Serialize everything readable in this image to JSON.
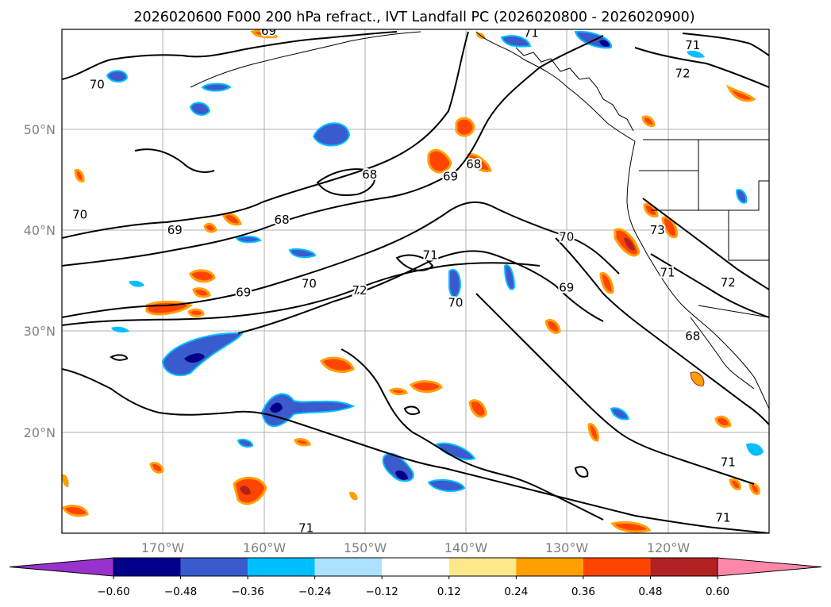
{
  "map": {
    "title": "2026020600 F000 200 hPa refract., IVT Landfall PC (2026020800 - 2026020900)",
    "latitude_labels": [
      "50°N",
      "40°N",
      "30°N",
      "20°N"
    ],
    "longitude_labels": [
      "170°W",
      "160°W",
      "150°W",
      "140°W",
      "130°W",
      "120°W"
    ],
    "contour_labels": [
      {
        "text": "69",
        "lon": -159.5,
        "lat": 59.7
      },
      {
        "text": "71",
        "lon": -133.5,
        "lat": 59.5
      },
      {
        "text": "71",
        "lon": -117.5,
        "lat": 58.3
      },
      {
        "text": "72",
        "lon": -118.5,
        "lat": 55.5
      },
      {
        "text": "70",
        "lon": -176.5,
        "lat": 54.4
      },
      {
        "text": "68",
        "lon": -149.5,
        "lat": 45.5
      },
      {
        "text": "69",
        "lon": -141.5,
        "lat": 45.3
      },
      {
        "text": "68",
        "lon": -139.2,
        "lat": 46.5
      },
      {
        "text": "70",
        "lon": -178.2,
        "lat": 41.5
      },
      {
        "text": "68",
        "lon": -158.2,
        "lat": 41.0
      },
      {
        "text": "69",
        "lon": -168.8,
        "lat": 40.0
      },
      {
        "text": "73",
        "lon": -121.0,
        "lat": 40.0
      },
      {
        "text": "70",
        "lon": -130.0,
        "lat": 39.3
      },
      {
        "text": "71",
        "lon": -143.5,
        "lat": 37.5
      },
      {
        "text": "71",
        "lon": -120.0,
        "lat": 35.8
      },
      {
        "text": "72",
        "lon": -114.0,
        "lat": 34.8
      },
      {
        "text": "72",
        "lon": -150.5,
        "lat": 34.0
      },
      {
        "text": "70",
        "lon": -155.5,
        "lat": 34.7
      },
      {
        "text": "69",
        "lon": -162.0,
        "lat": 33.8
      },
      {
        "text": "69",
        "lon": -130.0,
        "lat": 34.3
      },
      {
        "text": "70",
        "lon": -141.0,
        "lat": 32.8
      },
      {
        "text": "68",
        "lon": -117.5,
        "lat": 29.5
      },
      {
        "text": "71",
        "lon": -114.0,
        "lat": 17.0
      },
      {
        "text": "71",
        "lon": -114.5,
        "lat": 11.5
      },
      {
        "text": "71",
        "lon": -155.8,
        "lat": 10.5
      }
    ],
    "colorbar": {
      "ticks": [
        "−0.60",
        "−0.48",
        "−0.36",
        "−0.24",
        "−0.12",
        "0.12",
        "0.24",
        "0.36",
        "0.48",
        "0.60"
      ],
      "colors": [
        "#9932cc",
        "#00008b",
        "#3a5bcd",
        "#00bfff",
        "#ade2ff",
        "#ffffff",
        "#ffe88a",
        "#ff9f00",
        "#ff4400",
        "#b22222",
        "#ff88aa"
      ]
    },
    "colors": {
      "negative_fill": "#3a5bcd",
      "deep_negative_fill": "#00008b",
      "light_negative_fill": "#00bfff",
      "positive_fill": "#ff4400",
      "light_positive_fill": "#ff9f00",
      "contour": "#000000",
      "grid": "#b0b0b0"
    }
  }
}
